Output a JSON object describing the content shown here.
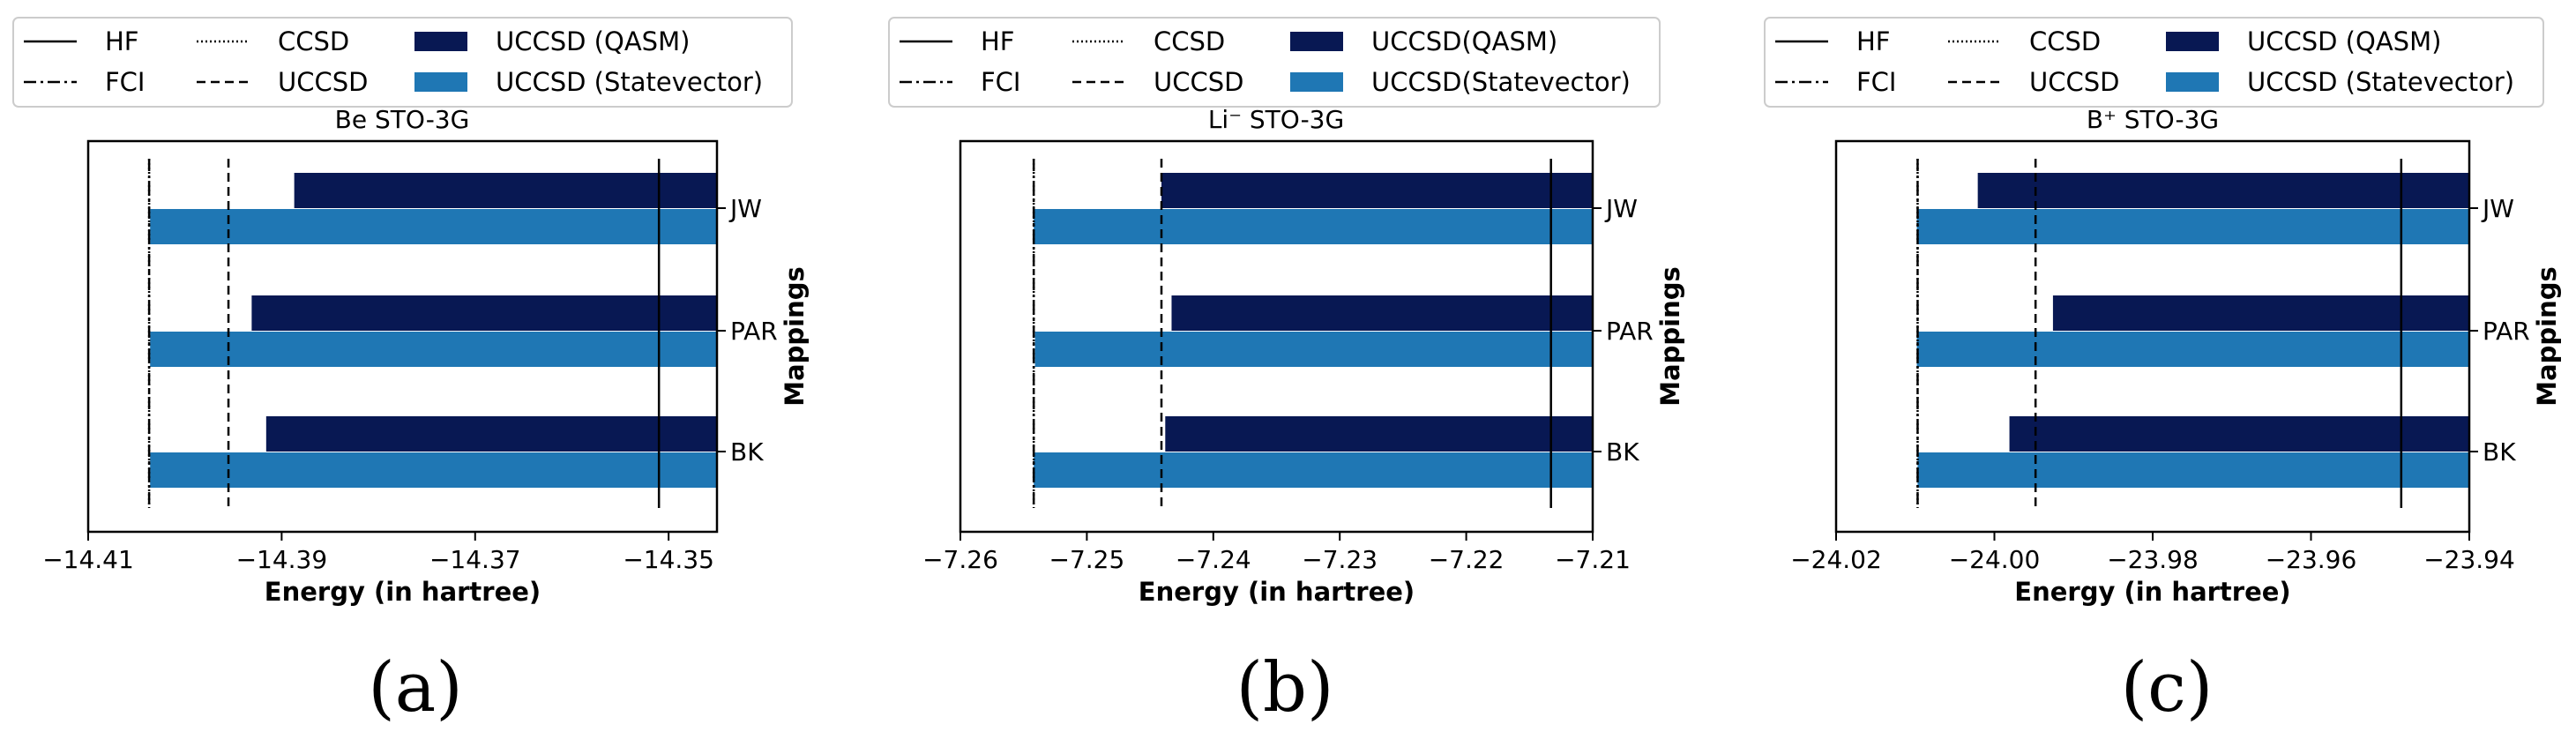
{
  "figure": {
    "legend": {
      "hf": "HF",
      "fci": "FCI",
      "ccsd": "CCSD",
      "uccsd": "UCCSD",
      "qasm": "UCCSD (QASM)",
      "statevector": "UCCSD (Statevector)",
      "qasm_b": "UCCSD(QASM)",
      "statevector_b": "UCCSD(Statevector)"
    },
    "colors": {
      "qasm": "#081853",
      "statevector": "#1f77b4"
    },
    "xlabel": "Energy (in hartree)",
    "ylabel": "Mappings"
  },
  "chart_data": [
    {
      "type": "bar",
      "orientation": "horizontal",
      "panel_label": "(a)",
      "title": "Be STO-3G",
      "xlabel": "Energy (in hartree)",
      "ylabel": "Mappings",
      "categories": [
        "JW",
        "PAR",
        "BK"
      ],
      "xlim": [
        -14.41,
        -14.345
      ],
      "xticks": [
        -14.41,
        -14.39,
        -14.37,
        -14.35
      ],
      "xtick_labels": [
        "−14.41",
        "−14.39",
        "−14.37",
        "−14.35"
      ],
      "series": [
        {
          "name": "UCCSD (QASM)",
          "values": [
            -14.3887,
            -14.3931,
            -14.3916
          ]
        },
        {
          "name": "UCCSD (Statevector)",
          "values": [
            -14.4036,
            -14.4036,
            -14.4036
          ]
        }
      ],
      "reference_lines": {
        "HF": -14.351,
        "FCI": -14.4037,
        "CCSD": -14.4037,
        "UCCSD": -14.3955
      }
    },
    {
      "type": "bar",
      "orientation": "horizontal",
      "panel_label": "(b)",
      "title": "Li⁻ STO-3G",
      "xlabel": "Energy (in hartree)",
      "ylabel": "Mappings",
      "categories": [
        "JW",
        "PAR",
        "BK"
      ],
      "xlim": [
        -7.26,
        -7.21
      ],
      "xticks": [
        -7.26,
        -7.25,
        -7.24,
        -7.23,
        -7.22,
        -7.21
      ],
      "xtick_labels": [
        "−7.26",
        "−7.25",
        "−7.24",
        "−7.23",
        "−7.22",
        "−7.21"
      ],
      "series": [
        {
          "name": "UCCSD(QASM)",
          "values": [
            -7.2441,
            -7.2433,
            -7.2438
          ]
        },
        {
          "name": "UCCSD(Statevector)",
          "values": [
            -7.2542,
            -7.2541,
            -7.2542
          ]
        }
      ],
      "reference_lines": {
        "HF": -7.2133,
        "FCI": -7.2542,
        "CCSD": -7.2542,
        "UCCSD": -7.2441
      }
    },
    {
      "type": "bar",
      "orientation": "horizontal",
      "panel_label": "(c)",
      "title": "B⁺  STO-3G",
      "xlabel": "Energy (in hartree)",
      "ylabel": "Mappings",
      "categories": [
        "JW",
        "PAR",
        "BK"
      ],
      "xlim": [
        -24.02,
        -23.94
      ],
      "xticks": [
        -24.02,
        -24.0,
        -23.98,
        -23.96,
        -23.94
      ],
      "xtick_labels": [
        "−24.02",
        "−24.00",
        "−23.98",
        "−23.96",
        "−23.94"
      ],
      "series": [
        {
          "name": "UCCSD (QASM)",
          "values": [
            -24.0021,
            -23.9926,
            -23.9981
          ]
        },
        {
          "name": "UCCSD (Statevector)",
          "values": [
            -24.0098,
            -24.0098,
            -24.0097
          ]
        }
      ],
      "reference_lines": {
        "HF": -23.9486,
        "FCI": -24.0097,
        "CCSD": -24.0097,
        "UCCSD": -23.9948
      }
    }
  ]
}
